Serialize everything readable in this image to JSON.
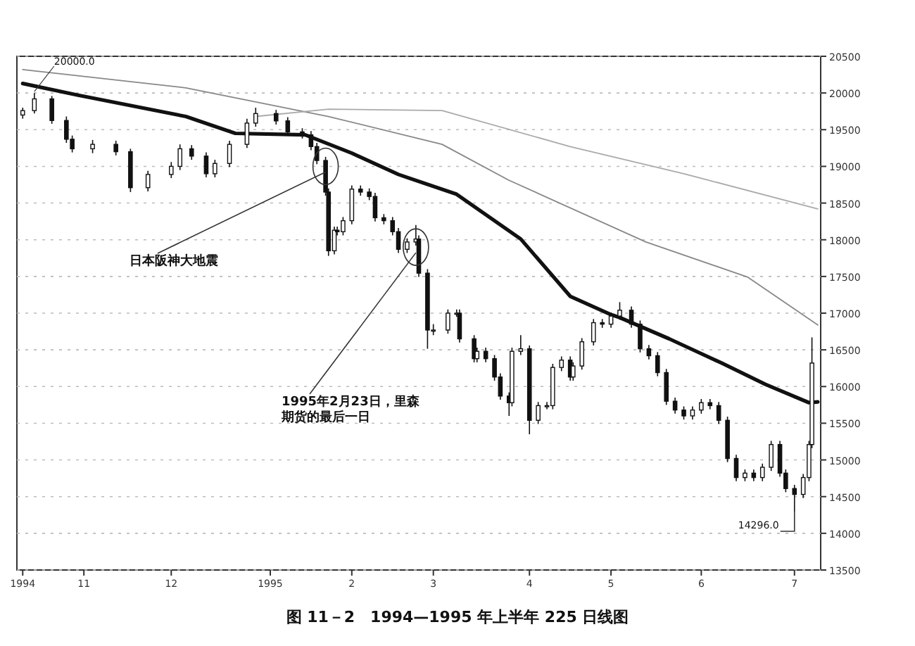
{
  "chart_data": {
    "type": "candlestick",
    "title": "图 11－2　1994—1995 年上半年 225 日线图",
    "x": [
      "1994-10-11",
      "1994-10-15",
      "1994-10-21",
      "1994-10-26",
      "1994-10-28",
      "1994-11-04",
      "1994-11-12",
      "1994-11-17",
      "1994-11-23",
      "1994-12-01",
      "1994-12-04",
      "1994-12-08",
      "1994-12-13",
      "1994-12-16",
      "1994-12-21",
      "1994-12-27",
      "1994-12-30",
      "1995-01-06",
      "1995-01-10",
      "1995-01-15",
      "1995-01-18",
      "1995-01-20",
      "1995-01-23",
      "1995-01-24",
      "1995-01-26",
      "1995-01-27",
      "1995-01-29",
      "1995-02-01",
      "1995-02-04",
      "1995-02-07",
      "1995-02-09",
      "1995-02-12",
      "1995-02-15",
      "1995-02-17",
      "1995-02-20",
      "1995-02-23",
      "1995-02-24",
      "1995-02-27",
      "1995-03-01",
      "1995-03-06",
      "1995-03-09",
      "1995-03-10",
      "1995-03-15",
      "1995-03-16",
      "1995-03-19",
      "1995-03-22",
      "1995-03-24",
      "1995-03-27",
      "1995-03-28",
      "1995-03-31",
      "1995-04-03",
      "1995-04-06",
      "1995-04-09",
      "1995-04-11",
      "1995-04-14",
      "1995-04-17",
      "1995-04-18",
      "1995-04-21",
      "1995-04-25",
      "1995-04-28",
      "1995-05-01",
      "1995-05-04",
      "1995-05-08",
      "1995-05-11",
      "1995-05-14",
      "1995-05-17",
      "1995-05-20",
      "1995-05-23",
      "1995-05-26",
      "1995-05-29",
      "1995-06-01",
      "1995-06-04",
      "1995-06-07",
      "1995-06-10",
      "1995-06-13",
      "1995-06-16",
      "1995-06-19",
      "1995-06-22",
      "1995-06-25",
      "1995-06-28",
      "1995-06-30",
      "1995-07-03",
      "1995-07-06",
      "1995-07-08",
      "1995-07-09"
    ],
    "ohlc": [
      [
        19700,
        19800,
        19650,
        19760
      ],
      [
        19760,
        20000,
        19720,
        19920
      ],
      [
        19920,
        19960,
        19580,
        19625
      ],
      [
        19625,
        19680,
        19320,
        19370
      ],
      [
        19370,
        19420,
        19190,
        19240
      ],
      [
        19240,
        19360,
        19180,
        19300
      ],
      [
        19300,
        19350,
        19150,
        19200
      ],
      [
        19200,
        19240,
        18650,
        18710
      ],
      [
        18710,
        18940,
        18660,
        18890
      ],
      [
        18890,
        19060,
        18840,
        19000
      ],
      [
        19000,
        19300,
        18950,
        19240
      ],
      [
        19240,
        19290,
        19090,
        19140
      ],
      [
        19140,
        19190,
        18850,
        18900
      ],
      [
        18900,
        19090,
        18850,
        19040
      ],
      [
        19040,
        19350,
        18990,
        19300
      ],
      [
        19300,
        19650,
        19250,
        19590
      ],
      [
        19590,
        19800,
        19540,
        19720
      ],
      [
        19720,
        19770,
        19570,
        19620
      ],
      [
        19620,
        19670,
        19420,
        19470
      ],
      [
        19470,
        19520,
        19380,
        19430
      ],
      [
        19430,
        19480,
        19220,
        19270
      ],
      [
        19270,
        19320,
        19030,
        19080
      ],
      [
        19080,
        19130,
        18600,
        18650
      ],
      [
        18650,
        18700,
        17780,
        17850
      ],
      [
        17850,
        18180,
        17800,
        18130
      ],
      [
        18130,
        18180,
        18060,
        18110
      ],
      [
        18110,
        18310,
        18060,
        18260
      ],
      [
        18260,
        18740,
        18210,
        18690
      ],
      [
        18690,
        18740,
        18600,
        18650
      ],
      [
        18650,
        18700,
        18540,
        18590
      ],
      [
        18590,
        18640,
        18250,
        18300
      ],
      [
        18300,
        18350,
        18210,
        18260
      ],
      [
        18260,
        18310,
        18060,
        18110
      ],
      [
        18110,
        18160,
        17820,
        17870
      ],
      [
        17870,
        18020,
        17820,
        17970
      ],
      [
        17970,
        18200,
        17920,
        18010
      ],
      [
        18010,
        18060,
        17495,
        17545
      ],
      [
        17545,
        17600,
        16515,
        16770
      ],
      [
        16770,
        16850,
        16700,
        16770
      ],
      [
        16770,
        17050,
        16720,
        17000
      ],
      [
        17000,
        17050,
        16950,
        17000
      ],
      [
        17000,
        17050,
        16600,
        16650
      ],
      [
        16650,
        16700,
        16330,
        16380
      ],
      [
        16380,
        16530,
        16330,
        16480
      ],
      [
        16480,
        16530,
        16330,
        16380
      ],
      [
        16380,
        16430,
        16080,
        16130
      ],
      [
        16130,
        16180,
        15820,
        15870
      ],
      [
        15870,
        15920,
        15600,
        15780
      ],
      [
        15780,
        16530,
        15730,
        16480
      ],
      [
        16480,
        16700,
        16430,
        16515
      ],
      [
        16515,
        16560,
        15350,
        15540
      ],
      [
        15540,
        15790,
        15490,
        15740
      ],
      [
        15740,
        15790,
        15690,
        15740
      ],
      [
        15740,
        16310,
        15690,
        16260
      ],
      [
        16260,
        16410,
        16210,
        16360
      ],
      [
        16360,
        16410,
        16080,
        16130
      ],
      [
        16130,
        16330,
        16080,
        16280
      ],
      [
        16280,
        16660,
        16230,
        16610
      ],
      [
        16610,
        16920,
        16560,
        16870
      ],
      [
        16870,
        16920,
        16800,
        16850
      ],
      [
        16850,
        17010,
        16800,
        16960
      ],
      [
        16960,
        17150,
        16910,
        17040
      ],
      [
        17040,
        17090,
        16800,
        16850
      ],
      [
        16850,
        16900,
        16465,
        16515
      ],
      [
        16515,
        16565,
        16370,
        16420
      ],
      [
        16420,
        16470,
        16140,
        16190
      ],
      [
        16190,
        16240,
        15750,
        15800
      ],
      [
        15800,
        15850,
        15630,
        15680
      ],
      [
        15680,
        15730,
        15550,
        15600
      ],
      [
        15600,
        15730,
        15550,
        15680
      ],
      [
        15680,
        15830,
        15630,
        15780
      ],
      [
        15780,
        15830,
        15690,
        15740
      ],
      [
        15740,
        15790,
        15490,
        15540
      ],
      [
        15540,
        15590,
        14970,
        15020
      ],
      [
        15020,
        15070,
        14710,
        14760
      ],
      [
        14760,
        14870,
        14710,
        14820
      ],
      [
        14820,
        14870,
        14710,
        14760
      ],
      [
        14760,
        14950,
        14710,
        14900
      ],
      [
        14900,
        15260,
        14850,
        15210
      ],
      [
        15210,
        15260,
        14770,
        14820
      ],
      [
        14820,
        14870,
        14560,
        14610
      ],
      [
        14610,
        14660,
        14296,
        14530
      ],
      [
        14530,
        14810,
        14480,
        14760
      ],
      [
        14760,
        15260,
        14710,
        15210
      ],
      [
        15210,
        16670,
        15160,
        16320
      ]
    ],
    "xlim": [
      "1994-10-09",
      "1995-07-12"
    ],
    "xticks": [
      {
        "value": "1994-10-11",
        "label": "1994"
      },
      {
        "value": "1994-11-01",
        "label": "11"
      },
      {
        "value": "1994-12-01",
        "label": "12"
      },
      {
        "value": "1995-01-04",
        "label": "1995"
      },
      {
        "value": "1995-02-01",
        "label": "2"
      },
      {
        "value": "1995-03-01",
        "label": "3"
      },
      {
        "value": "1995-04-03",
        "label": "4"
      },
      {
        "value": "1995-05-01",
        "label": "5"
      },
      {
        "value": "1995-06-01",
        "label": "6"
      },
      {
        "value": "1995-07-03",
        "label": "7"
      }
    ],
    "ylim": [
      13500,
      20500
    ],
    "yticks": [
      13500,
      14000,
      14500,
      15000,
      15500,
      16000,
      16500,
      17000,
      17500,
      18000,
      18500,
      19000,
      19500,
      20000,
      20500
    ],
    "grid": "y",
    "series": [
      {
        "type": "line",
        "color": "#111111",
        "x": [
          "1994-10-11",
          "1994-10-30",
          "1994-12-06",
          "1994-12-23",
          "1995-01-16",
          "1995-02-01",
          "1995-02-17",
          "1995-03-09",
          "1995-03-31",
          "1995-04-17",
          "1995-05-01",
          "1995-05-04",
          "1995-05-21",
          "1995-06-08",
          "1995-06-23",
          "1995-07-08",
          "1995-07-11"
        ],
        "values": [
          20130,
          19970,
          19680,
          19450,
          19430,
          19180,
          18890,
          18620,
          18010,
          17230,
          16980,
          16940,
          16650,
          16320,
          16030,
          15780,
          15790
        ]
      },
      {
        "type": "line",
        "color": "#888888",
        "x": [
          "1994-10-11",
          "1994-12-06",
          "1995-01-24",
          "1995-03-04",
          "1995-03-27",
          "1995-05-13",
          "1995-06-17",
          "1995-07-11"
        ],
        "values": [
          20320,
          20070,
          19680,
          19300,
          18810,
          17970,
          17490,
          16840
        ]
      },
      {
        "type": "line",
        "color": "#aaaaaa",
        "x": [
          "1994-12-30",
          "1995-01-24",
          "1995-03-04",
          "1995-04-17",
          "1995-05-26",
          "1995-07-11"
        ],
        "values": [
          19680,
          19780,
          19760,
          19270,
          18900,
          18420
        ]
      }
    ],
    "annotations": [
      {
        "text": "日本阪神大地震",
        "x": "1995-01-23",
        "y": 19000
      },
      {
        "text": "1995年2月23日，里森期货的最后一日",
        "x": "1995-02-23",
        "y": 17900
      },
      {
        "text": "20000.0",
        "x": "1994-10-15",
        "y": 20000
      },
      {
        "text": "14296.0",
        "x": "1995-07-03",
        "y": 14296
      }
    ]
  }
}
